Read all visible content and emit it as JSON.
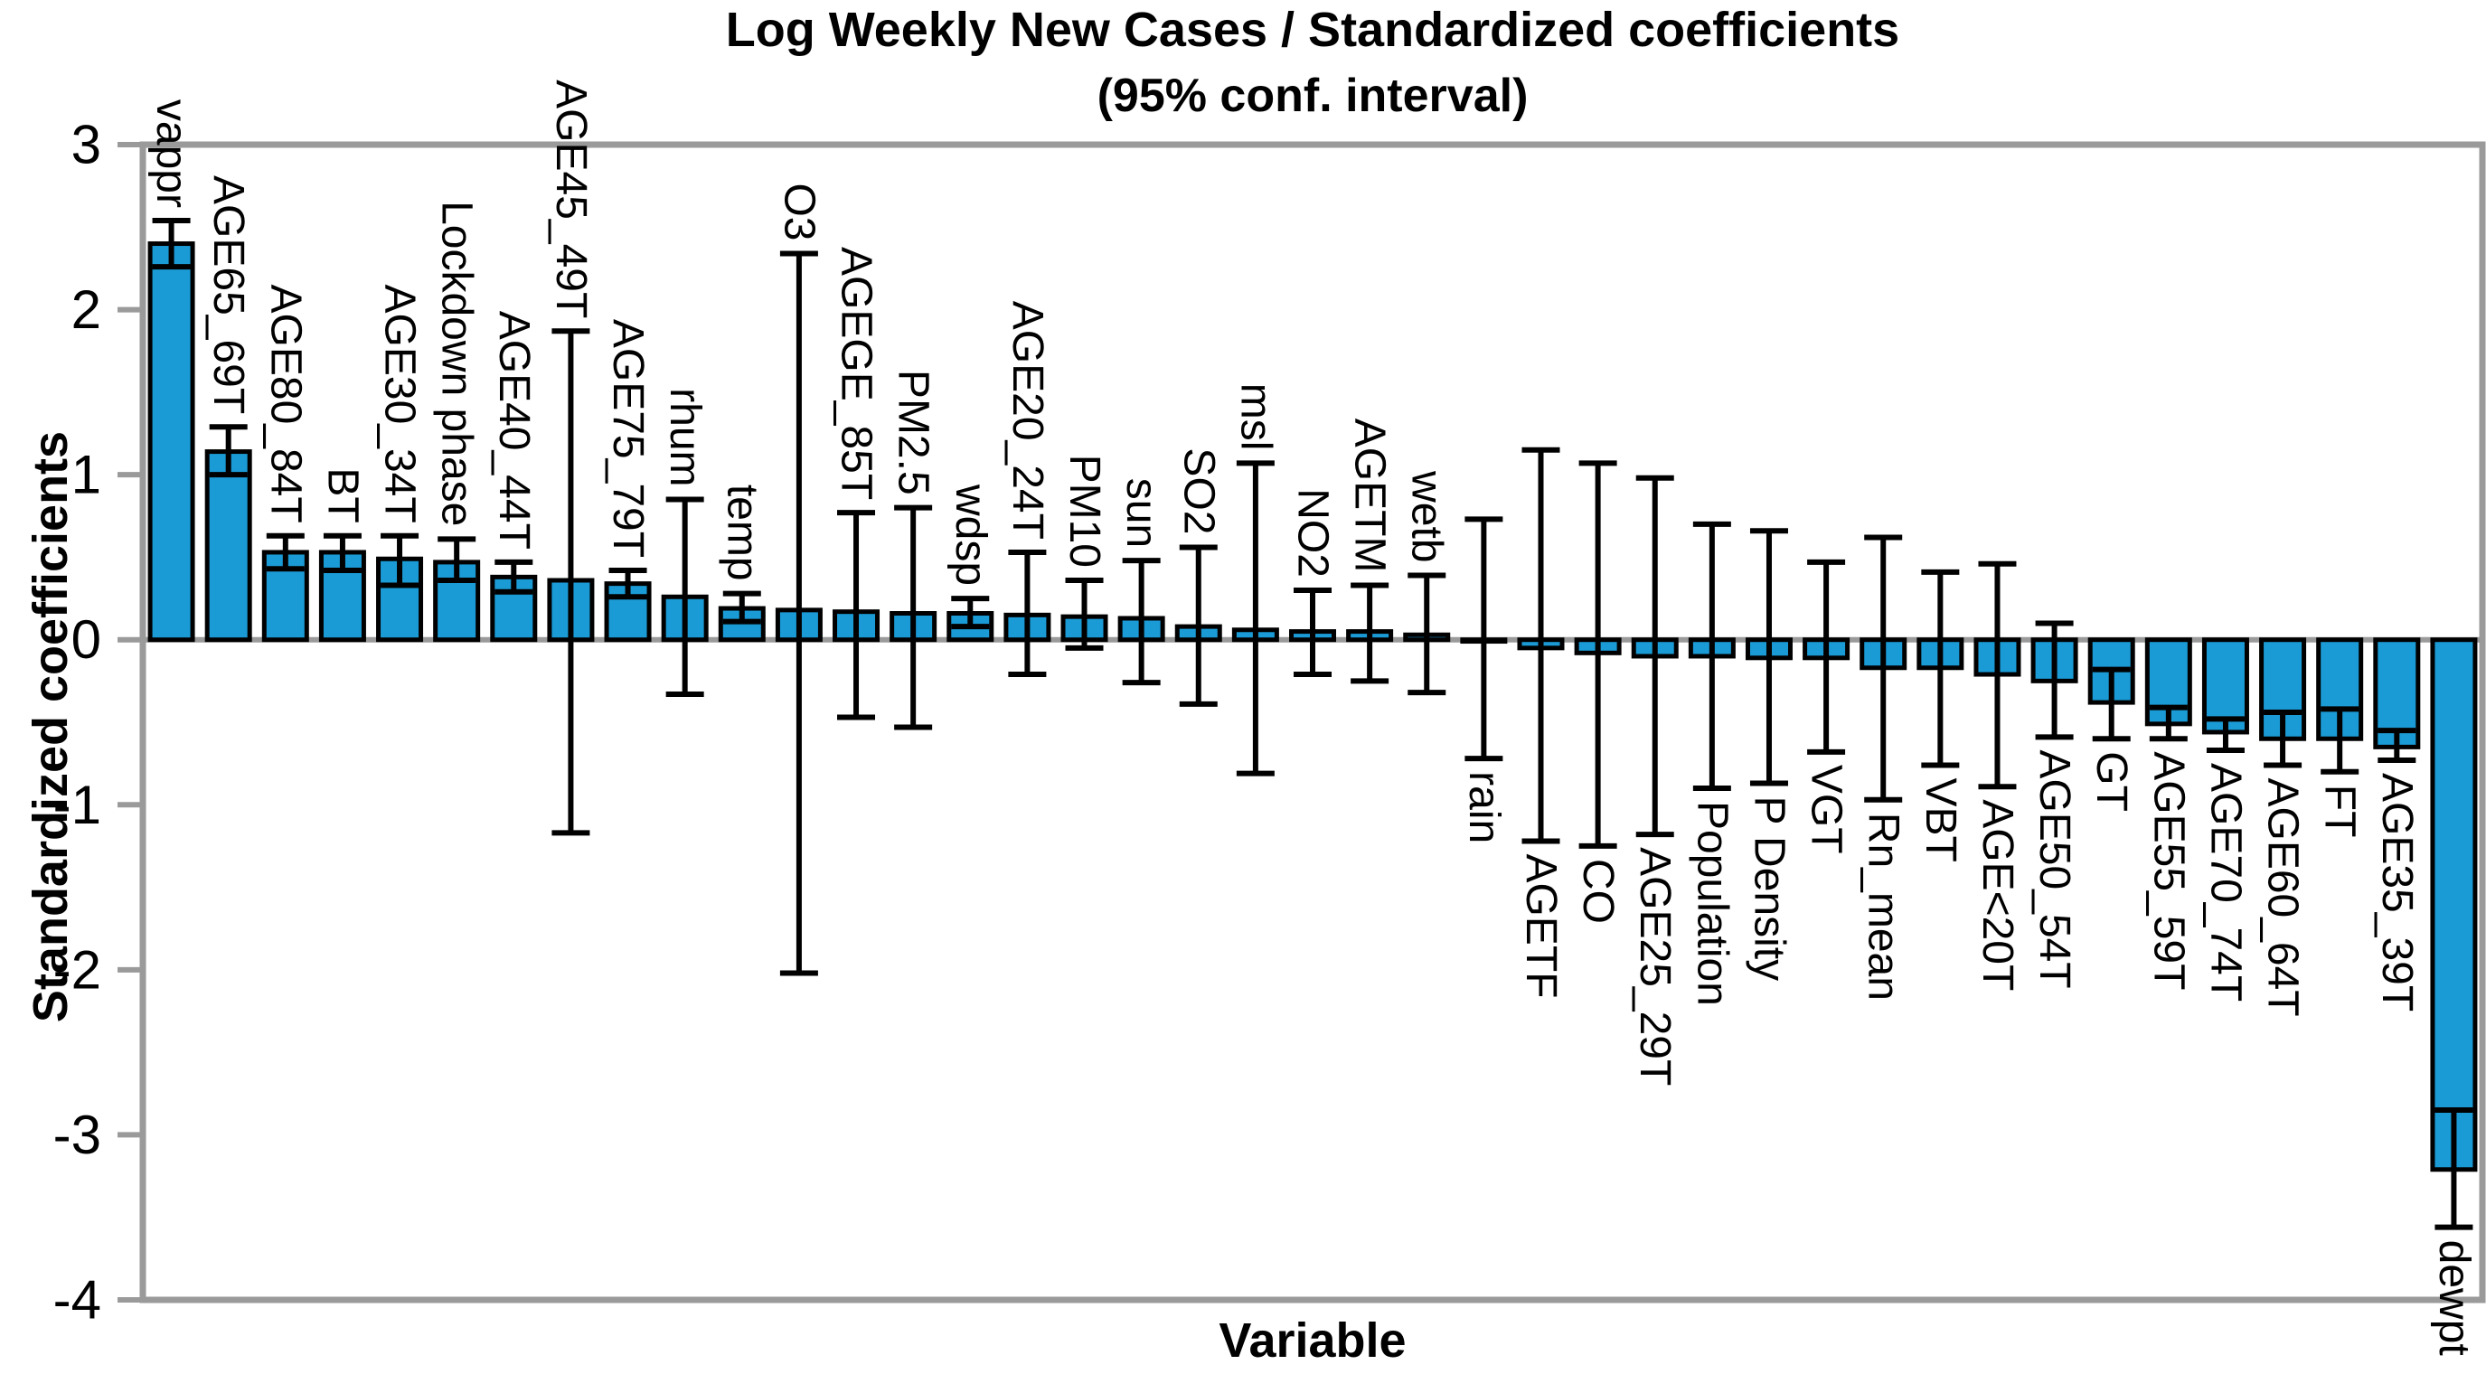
{
  "title": {
    "line1": "Log Weekly New Cases / Standardized coefficients",
    "line2": "(95% conf. interval)"
  },
  "axes": {
    "x_label": "Variable",
    "y_label": "Standardized coefficients",
    "y_ticks": [
      3,
      2,
      1,
      0,
      -1,
      -2,
      -3,
      -4
    ],
    "ylim": [
      -4,
      3
    ]
  },
  "style": {
    "bar_fill": "#1B9BD6",
    "bar_stroke": "#000000",
    "error_color": "#000000",
    "axis_color": "#9A9A9A",
    "tick_label_color": "#000000"
  },
  "chart_data": {
    "type": "bar",
    "title": "Log Weekly New Cases / Standardized coefficients (95% conf. interval)",
    "xlabel": "Variable",
    "ylabel": "Standardized coefficients",
    "ylim": [
      -4,
      3
    ],
    "grid": false,
    "legend": false,
    "error_bars": "95% confidence interval",
    "categories": [
      "vappr",
      "AGE65_69T",
      "AGE80_84T",
      "BT",
      "AGE30_34T",
      "Lockdown phase",
      "AGE40_44T",
      "AGE45_49T",
      "AGE75_79T",
      "rhum",
      "temp",
      "O3",
      "AGEGE_85T",
      "PM2.5",
      "wdsp",
      "AGE20_24T",
      "PM10",
      "sun",
      "SO2",
      "msl",
      "NO2",
      "AGETM",
      "wetb",
      "rain",
      "AGETF",
      "CO",
      "AGE25_29T",
      "Population",
      "P Density",
      "VGT",
      "Rn_mean",
      "VBT",
      "AGE<20T",
      "AGE50_54T",
      "GT",
      "AGE55_59T",
      "AGE70_74T",
      "AGE60_64T",
      "FT",
      "AGE35_39T",
      "dewpt"
    ],
    "values": [
      2.4,
      1.14,
      0.53,
      0.53,
      0.49,
      0.47,
      0.38,
      0.36,
      0.34,
      0.26,
      0.19,
      0.18,
      0.17,
      0.16,
      0.16,
      0.15,
      0.14,
      0.13,
      0.08,
      0.06,
      0.05,
      0.05,
      0.03,
      -0.01,
      -0.05,
      -0.08,
      -0.1,
      -0.1,
      -0.11,
      -0.11,
      -0.17,
      -0.17,
      -0.21,
      -0.25,
      -0.38,
      -0.51,
      -0.56,
      -0.6,
      -0.6,
      -0.65,
      -3.21
    ],
    "ci_low": [
      2.26,
      1.0,
      0.43,
      0.42,
      0.33,
      0.36,
      0.29,
      -1.17,
      0.26,
      -0.33,
      0.11,
      -2.02,
      -0.47,
      -0.53,
      0.08,
      -0.21,
      -0.05,
      -0.26,
      -0.39,
      -0.81,
      -0.21,
      -0.25,
      -0.32,
      -0.72,
      -1.22,
      -1.25,
      -1.18,
      -0.9,
      -0.87,
      -0.68,
      -0.97,
      -0.76,
      -0.89,
      -0.59,
      -0.6,
      -0.6,
      -0.67,
      -0.76,
      -0.8,
      -0.73,
      -3.56
    ],
    "ci_high": [
      2.54,
      1.29,
      0.63,
      0.63,
      0.63,
      0.61,
      0.47,
      1.87,
      0.42,
      0.85,
      0.28,
      2.34,
      0.77,
      0.8,
      0.25,
      0.53,
      0.36,
      0.48,
      0.56,
      1.07,
      0.3,
      0.33,
      0.39,
      0.73,
      1.15,
      1.07,
      0.98,
      0.7,
      0.66,
      0.47,
      0.62,
      0.41,
      0.46,
      0.1,
      -0.18,
      -0.41,
      -0.48,
      -0.44,
      -0.42,
      -0.55,
      -2.85
    ]
  }
}
